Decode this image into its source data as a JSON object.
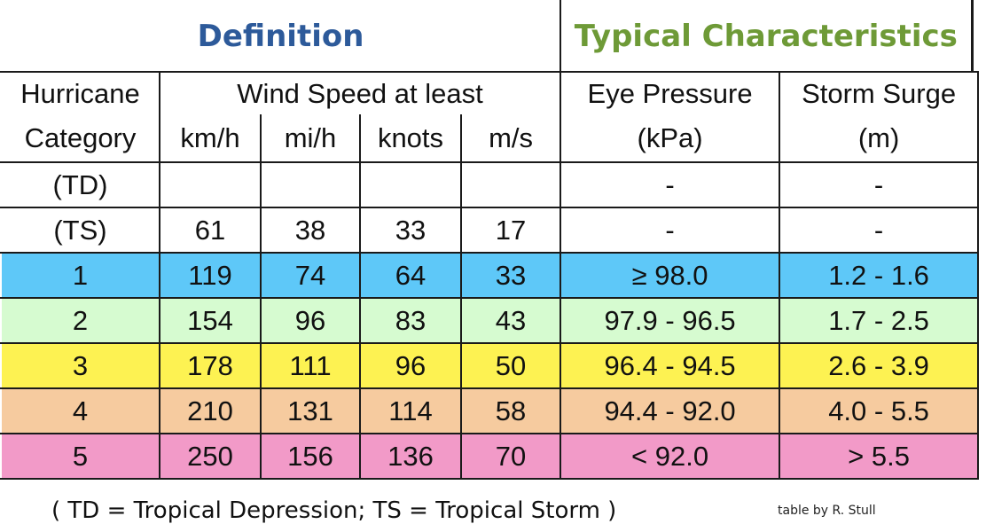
{
  "header": {
    "definition": "Definition",
    "typical_characteristics": "Typical Characteristics",
    "hurricane": "Hurricane",
    "category": "Category",
    "wind_speed": "Wind Speed at least",
    "kmh": "km/h",
    "mih": "mi/h",
    "knots": "knots",
    "ms": "m/s",
    "eye_pressure": "Eye Pressure",
    "kpa": "(kPa)",
    "storm_surge": "Storm Surge",
    "m": "(m)"
  },
  "rows": [
    {
      "category": "(TD)",
      "kmh": "",
      "mih": "",
      "knots": "",
      "ms": "",
      "pressure": "-",
      "surge": "-",
      "color": "#ffffff"
    },
    {
      "category": "(TS)",
      "kmh": "61",
      "mih": "38",
      "knots": "33",
      "ms": "17",
      "pressure": "-",
      "surge": "-",
      "color": "#ffffff"
    },
    {
      "category": "1",
      "kmh": "119",
      "mih": "74",
      "knots": "64",
      "ms": "33",
      "pressure": "≥ 98.0",
      "surge": "1.2 - 1.6",
      "color": "#5ec8f8"
    },
    {
      "category": "2",
      "kmh": "154",
      "mih": "96",
      "knots": "83",
      "ms": "43",
      "pressure": "97.9 - 96.5",
      "surge": "1.7 - 2.5",
      "color": "#d6fbd0"
    },
    {
      "category": "3",
      "kmh": "178",
      "mih": "111",
      "knots": "96",
      "ms": "50",
      "pressure": "96.4 - 94.5",
      "surge": "2.6 - 3.9",
      "color": "#fdf252"
    },
    {
      "category": "4",
      "kmh": "210",
      "mih": "131",
      "knots": "114",
      "ms": "58",
      "pressure": "94.4 - 92.0",
      "surge": "4.0 - 5.5",
      "color": "#f6cb9f"
    },
    {
      "category": "5",
      "kmh": "250",
      "mih": "156",
      "knots": "136",
      "ms": "70",
      "pressure": "< 92.0",
      "surge": "> 5.5",
      "color": "#f29ac8"
    }
  ],
  "footer": {
    "note": "( TD = Tropical Depression;    TS = Tropical Storm )",
    "credit": "table by R. Stull"
  }
}
